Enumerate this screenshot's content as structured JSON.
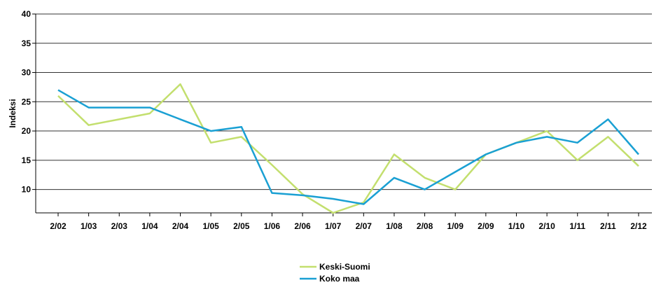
{
  "chart_data": {
    "type": "line",
    "title": "",
    "xlabel": "",
    "ylabel": "Indeksi",
    "ylim": [
      6,
      40
    ],
    "yticks": [
      10,
      15,
      20,
      25,
      30,
      35,
      40
    ],
    "grid": true,
    "legend_position": "bottom-center",
    "categories": [
      "2/02",
      "1/03",
      "2/03",
      "1/04",
      "2/04",
      "1/05",
      "2/05",
      "1/06",
      "2/06",
      "1/07",
      "2/07",
      "1/08",
      "2/08",
      "1/09",
      "2/09",
      "1/10",
      "2/10",
      "1/11",
      "2/11",
      "2/12"
    ],
    "series": [
      {
        "name": "Keski-Suomi",
        "color": "#c3df6e",
        "values": [
          26,
          21,
          22,
          23,
          28,
          18,
          19,
          14.2,
          9.2,
          6,
          7.8,
          16,
          12,
          10,
          16,
          18,
          20,
          15,
          19,
          14
        ]
      },
      {
        "name": "Koko maa",
        "color": "#1aa0d3",
        "values": [
          27,
          24,
          24,
          24,
          22,
          20,
          20.7,
          9.4,
          9,
          8.4,
          7.5,
          12,
          10,
          13,
          16,
          18,
          19,
          18,
          22,
          16
        ]
      }
    ]
  }
}
